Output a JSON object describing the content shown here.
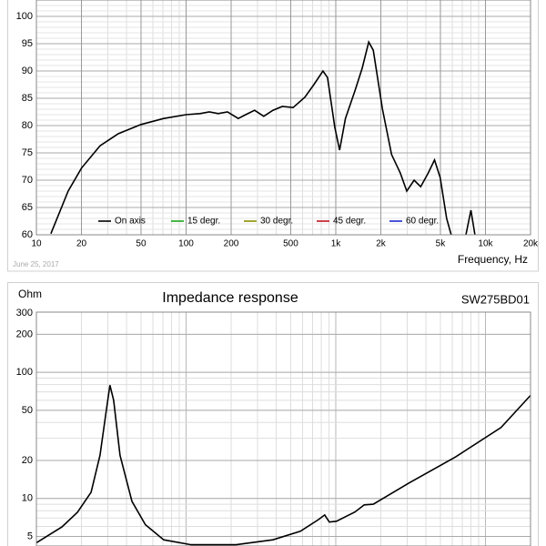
{
  "chart_data": [
    {
      "type": "line",
      "xlabel": "Frequency, Hz",
      "annotation": "June 25, 2017",
      "xlog": true,
      "ylog": false,
      "grid": true,
      "legend": "bottom",
      "xlim": [
        10,
        20000
      ],
      "ylim": [
        60,
        103
      ],
      "xticks": [
        10,
        20,
        50,
        100,
        200,
        500,
        {
          "value": 1000,
          "label": "1k"
        },
        {
          "value": 2000,
          "label": "2k"
        },
        {
          "value": 5000,
          "label": "5k"
        },
        {
          "value": 10000,
          "label": "10k"
        },
        {
          "value": 20000,
          "label": "20k"
        }
      ],
      "yticks": [
        60,
        65,
        70,
        75,
        80,
        85,
        90,
        95,
        100
      ],
      "series": [
        {
          "name": "On axis",
          "color": "#000000",
          "x": [
            12.5,
            16.3,
            20,
            26.6,
            35.2,
            50,
            70.9,
            100,
            124,
            143,
            164,
            189,
            223,
            250,
            287,
            330,
            380,
            439,
            519,
            621,
            714,
            821,
            881,
            985,
            1060,
            1160,
            1340,
            1500,
            1660,
            1780,
            2050,
            2360,
            2700,
            2980,
            3340,
            3690,
            4140,
            4570,
            4980,
            5500,
            5900,
            6600,
            7400,
            8000,
            8500
          ],
          "values": [
            60.2,
            68,
            72.2,
            76.3,
            78.5,
            80.2,
            81.3,
            82,
            82.2,
            82.5,
            82.2,
            82.5,
            81.3,
            82,
            82.8,
            81.7,
            82.8,
            83.5,
            83.3,
            85.2,
            87.5,
            90,
            88.8,
            79.7,
            75.5,
            81.3,
            86.3,
            90.5,
            95.3,
            93.8,
            83,
            74.7,
            71.3,
            68,
            70,
            68.8,
            71.3,
            73.7,
            70.5,
            63,
            60,
            null,
            60,
            64.5,
            60
          ]
        },
        {
          "name": "15 degr.",
          "color": "#1aa51a",
          "x": [],
          "values": []
        },
        {
          "name": "30 degr.",
          "color": "#8c8c00",
          "x": [],
          "values": []
        },
        {
          "name": "45 degr.",
          "color": "#c0141e",
          "x": [],
          "values": []
        },
        {
          "name": "60 degr.",
          "color": "#1e28c8",
          "x": [],
          "values": []
        }
      ]
    },
    {
      "type": "line",
      "title": "Impedance response",
      "ylabel": "Ohm",
      "annotation": "SW275BD01",
      "xlog": true,
      "ylog": true,
      "grid": true,
      "xlim": [
        10,
        20000
      ],
      "ylim": [
        4.2,
        300
      ],
      "yticks": [
        5,
        10,
        20,
        50,
        100,
        200,
        300
      ],
      "color": "#000000",
      "x": [
        10,
        14.8,
        18.8,
        23.2,
        26.6,
        29.4,
        31,
        32.8,
        36.2,
        43.5,
        53.5,
        70.9,
        108,
        216,
        380,
        580,
        765,
        843,
        905,
        1010,
        1340,
        1550,
        1780,
        3100,
        6300,
        12700,
        20000
      ],
      "values": [
        4.46,
        5.94,
        7.77,
        11.2,
        22,
        51,
        79,
        60,
        22,
        9.5,
        6.2,
        4.7,
        4.3,
        4.3,
        4.7,
        5.5,
        6.8,
        7.4,
        6.5,
        6.6,
        7.8,
        8.9,
        9.0,
        13.3,
        21.3,
        36.5,
        65.6
      ]
    }
  ]
}
